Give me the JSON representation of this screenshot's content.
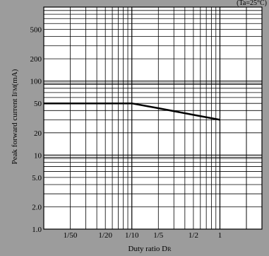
{
  "chart_data": {
    "type": "line",
    "title": "",
    "condition": "(Ta=25°C)",
    "xlabel": "Duty ratio D",
    "xlabel_sub": "R",
    "ylabel": "Peak forward current I",
    "ylabel_sub": "FM",
    "ylabel_unit": "(mA)",
    "x_scale": "log",
    "y_scale": "log",
    "xlim": [
      0.01,
      3
    ],
    "ylim": [
      1.0,
      1000
    ],
    "grid": true,
    "x_ticks": [
      {
        "value": 0.02,
        "label": "1/50"
      },
      {
        "value": 0.05,
        "label": "1/20"
      },
      {
        "value": 0.1,
        "label": "1/10"
      },
      {
        "value": 0.2,
        "label": "1/5"
      },
      {
        "value": 0.5,
        "label": "1/2"
      },
      {
        "value": 1,
        "label": "1"
      }
    ],
    "y_ticks": [
      {
        "value": 1,
        "label": "1.0"
      },
      {
        "value": 2,
        "label": "2.0"
      },
      {
        "value": 5,
        "label": "5.0"
      },
      {
        "value": 10,
        "label": "10"
      },
      {
        "value": 20,
        "label": "20"
      },
      {
        "value": 50,
        "label": "50"
      },
      {
        "value": 100,
        "label": "100"
      },
      {
        "value": 200,
        "label": "200"
      },
      {
        "value": 500,
        "label": "500"
      }
    ],
    "series": [
      {
        "x": [
          0.01,
          0.1,
          0.2,
          0.5,
          1
        ],
        "y": [
          50,
          50,
          43,
          35,
          30
        ]
      }
    ]
  },
  "colors": {
    "background": "#9c9c9c",
    "plot_background": "#ffffff",
    "grid": "#000000",
    "line": "#000000"
  }
}
